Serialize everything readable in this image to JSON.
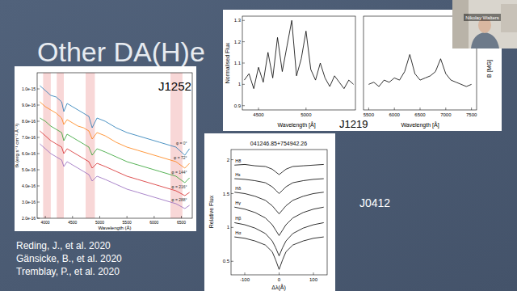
{
  "slide": {
    "title": "Other DA(H)e",
    "references": [
      "Reding, J., et al. 2020",
      "Gänsicke, B., et al. 2020",
      "Tremblay, P., et al. 2020"
    ],
    "speaker": "Nikolay Walters"
  },
  "chart_data": [
    {
      "type": "line",
      "title": "J1252",
      "x_label": "Wavelength (Å)",
      "y_label": "fλ (erg s⁻¹ cm⁻² Å⁻¹)",
      "x": [
        3900,
        4000,
        4100,
        4200,
        4300,
        4340,
        4400,
        4500,
        4600,
        4700,
        4800,
        4861,
        4950,
        5100,
        5300,
        5500,
        5700,
        5900,
        6100,
        6300,
        6400,
        6563,
        6650
      ],
      "series": [
        {
          "name": "φ = 0°",
          "color": "#1f77b4",
          "values": [
            1.02e-15,
            9.9e-16,
            9.6e-16,
            9.5e-16,
            9.2e-16,
            8.6e-16,
            9.1e-16,
            8.9e-16,
            8.7e-16,
            8.5e-16,
            8.3e-16,
            7.6e-16,
            8.2e-16,
            8e-16,
            7.6e-16,
            7.3e-16,
            7.1e-16,
            6.9e-16,
            6.7e-16,
            6.5e-16,
            6.4e-16,
            5.9e-16,
            6.3e-16
          ]
        },
        {
          "name": "φ = 72°",
          "color": "#ff7f0e",
          "values": [
            9.2e-16,
            8.9e-16,
            8.7e-16,
            8.5e-16,
            8.2e-16,
            7.8e-16,
            8.1e-16,
            7.9e-16,
            7.7e-16,
            7.6e-16,
            7.4e-16,
            6.9e-16,
            7.3e-16,
            7.1e-16,
            6.7e-16,
            6.4e-16,
            6.2e-16,
            6e-16,
            5.8e-16,
            5.6e-16,
            5.5e-16,
            5.1e-16,
            5.4e-16
          ]
        },
        {
          "name": "φ = 144°",
          "color": "#2ca02c",
          "values": [
            8.2e-16,
            8e-16,
            7.7e-16,
            7.5e-16,
            7.3e-16,
            6.8e-16,
            7.2e-16,
            7e-16,
            6.8e-16,
            6.6e-16,
            6.4e-16,
            5.9e-16,
            6.3e-16,
            6.1e-16,
            5.8e-16,
            5.5e-16,
            5.3e-16,
            5.1e-16,
            4.9e-16,
            4.7e-16,
            4.6e-16,
            4.2e-16,
            4.5e-16
          ]
        },
        {
          "name": "φ = 216°",
          "color": "#d62728",
          "values": [
            7.4e-16,
            7.1e-16,
            6.8e-16,
            6.6e-16,
            6.4e-16,
            6e-16,
            6.3e-16,
            6.1e-16,
            5.9e-16,
            5.7e-16,
            5.5e-16,
            5.1e-16,
            5.4e-16,
            5.2e-16,
            4.9e-16,
            4.6e-16,
            4.4e-16,
            4.2e-16,
            4e-16,
            3.8e-16,
            3.7e-16,
            3.4e-16,
            3.6e-16
          ]
        },
        {
          "name": "φ = 288°",
          "color": "#9467bd",
          "values": [
            6.6e-16,
            6.3e-16,
            6e-16,
            5.8e-16,
            5.6e-16,
            5.2e-16,
            5.5e-16,
            5.3e-16,
            5.1e-16,
            4.9e-16,
            4.7e-16,
            4.3e-16,
            4.6e-16,
            4.4e-16,
            4.1e-16,
            3.8e-16,
            3.6e-16,
            3.4e-16,
            3.2e-16,
            3e-16,
            2.9e-16,
            2.6e-16,
            2.8e-16
          ]
        }
      ],
      "bands": [
        [
          3960,
          4100
        ],
        [
          4210,
          4340
        ],
        [
          4740,
          4910
        ],
        [
          6300,
          6520
        ]
      ],
      "xlim": [
        3850,
        6700
      ],
      "xticks": [
        4000,
        4500,
        5000,
        5500,
        6000,
        6500
      ],
      "ylim": [
        2e-16,
        1.1e-15
      ],
      "yticks": [
        {
          "value": 2e-16,
          "label": "2.0e-16"
        },
        {
          "value": 3e-16,
          "label": "3.0e-16"
        },
        {
          "value": 4e-16,
          "label": "4.0e-16"
        },
        {
          "value": 5e-16,
          "label": "5.0e-16"
        },
        {
          "value": 6e-16,
          "label": "6.0e-16"
        },
        {
          "value": 7e-16,
          "label": "7.0e-16"
        },
        {
          "value": 8e-16,
          "label": "8.0e-16"
        },
        {
          "value": 9e-16,
          "label": "9.0e-16"
        },
        {
          "value": 1e-15,
          "label": "1.0e-15"
        }
      ]
    },
    {
      "type": "line",
      "title": "J1219",
      "x_label": "Wavelength [Å]",
      "y_label": "Normalised Flux",
      "x": [
        4350,
        4400,
        4450,
        4500,
        4550,
        4600,
        4650,
        4700,
        4750,
        4800,
        4850,
        4900,
        4950,
        5000,
        5050,
        5100,
        5150,
        5200,
        5250,
        5300,
        5350,
        5400,
        5450,
        5500
      ],
      "series": [
        {
          "color": "#000000",
          "values": [
            1.02,
            1.05,
            0.98,
            1.08,
            1.01,
            1.15,
            1.03,
            1.22,
            1.06,
            1.18,
            1.3,
            1.04,
            1.12,
            1.25,
            1.07,
            1.02,
            1.1,
            1.03,
            0.99,
            1.04,
            1.01,
            0.98,
            1.02,
            1.0
          ]
        }
      ],
      "xlim": [
        4330,
        5520
      ],
      "xticks": [
        4500,
        5000
      ],
      "ylim": [
        0.88,
        1.32
      ],
      "yticks": [
        0.9,
        1,
        1.1,
        1.2,
        1.3
      ]
    },
    {
      "type": "line",
      "x_label": "Wavelength [Å]",
      "y_label": "B [MG]",
      "x": [
        5500,
        5600,
        5700,
        5800,
        5900,
        6000,
        6100,
        6200,
        6300,
        6400,
        6500,
        6600,
        6700,
        6800,
        6900,
        7000,
        7100,
        7200,
        7300,
        7400,
        7500
      ],
      "series": [
        {
          "color": "#000000",
          "values": [
            1.0,
            1.01,
            0.99,
            1.02,
            1.01,
            1.03,
            1.02,
            1.06,
            1.14,
            1.05,
            1.02,
            1.03,
            1.04,
            1.06,
            1.12,
            1.05,
            1.02,
            1.01,
            1.0,
            0.99,
            1.0
          ]
        }
      ],
      "xlim": [
        5400,
        7600
      ],
      "xticks": [
        5500,
        6000,
        6500,
        7000,
        7500
      ],
      "ylim": [
        0.88,
        1.32
      ],
      "tick_labels": "x"
    },
    {
      "type": "line",
      "title": "041246.85+754942.26",
      "subtitle": "J0412",
      "x_label": "Δλ(Å)",
      "y_label": "Relative Flux",
      "x": [
        -130,
        -100,
        -70,
        -40,
        -20,
        -10,
        0,
        10,
        20,
        40,
        70,
        100,
        130
      ],
      "series": [
        {
          "name": "H8",
          "color": "#000000",
          "values": [
            1.92,
            1.93,
            1.91,
            1.9,
            1.86,
            1.82,
            1.78,
            1.82,
            1.86,
            1.9,
            1.91,
            1.92,
            1.93
          ]
        },
        {
          "name": "Hε",
          "color": "#000000",
          "values": [
            1.72,
            1.71,
            1.69,
            1.66,
            1.6,
            1.55,
            1.5,
            1.55,
            1.6,
            1.66,
            1.69,
            1.71,
            1.72
          ]
        },
        {
          "name": "Hδ",
          "color": "#000000",
          "values": [
            1.52,
            1.5,
            1.46,
            1.4,
            1.32,
            1.26,
            1.2,
            1.26,
            1.32,
            1.4,
            1.46,
            1.5,
            1.52
          ]
        },
        {
          "name": "Hγ",
          "color": "#000000",
          "values": [
            1.3,
            1.27,
            1.22,
            1.14,
            1.04,
            0.96,
            0.88,
            0.96,
            1.04,
            1.14,
            1.22,
            1.27,
            1.3
          ]
        },
        {
          "name": "Hβ",
          "color": "#000000",
          "values": [
            1.07,
            1.04,
            0.99,
            0.91,
            0.8,
            0.7,
            0.58,
            0.7,
            0.8,
            0.91,
            0.99,
            1.04,
            1.07
          ]
        },
        {
          "name": "Hα",
          "color": "#000000",
          "values": [
            0.86,
            0.84,
            0.8,
            0.74,
            0.64,
            0.52,
            0.38,
            0.52,
            0.64,
            0.74,
            0.8,
            0.84,
            0.86
          ]
        }
      ],
      "xlim": [
        -140,
        140
      ],
      "xticks": [
        -100,
        0,
        100
      ],
      "ylim": [
        0.3,
        2.15
      ],
      "yticks": [
        0.5,
        1,
        1.5,
        2
      ]
    }
  ]
}
